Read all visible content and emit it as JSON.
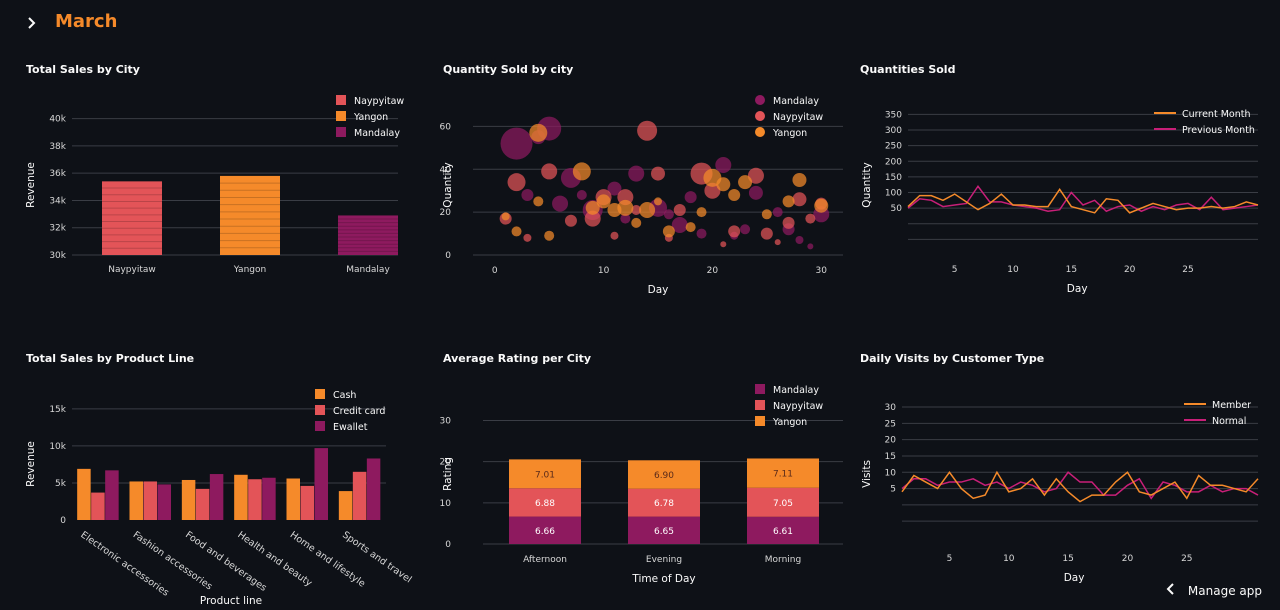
{
  "header": {
    "title": "March",
    "toggle_icon": "chevron-right-icon"
  },
  "footer": {
    "manage_label": "Manage app",
    "icon": "chevron-left-icon"
  },
  "colors": {
    "background": "#0e1117",
    "orange": "#f58a2a",
    "red": "#e35458",
    "purple": "#8e1a5f",
    "title_orange": "#f58a2a"
  },
  "charts": [
    {
      "title": "Total Sales by City",
      "chart_data": {
        "type": "bar",
        "categories": [
          "Naypyitaw",
          "Yangon",
          "Mandalay"
        ],
        "values": [
          35400,
          35800,
          32900
        ],
        "ylabel": "Revenue",
        "ylim": [
          30000,
          41000
        ],
        "yticks": [
          "30k",
          "32k",
          "34k",
          "36k",
          "38k",
          "40k"
        ],
        "legend": [
          "Naypyitaw",
          "Yangon",
          "Mandalay"
        ],
        "legend_position": "top-right"
      }
    },
    {
      "title": "Quantity Sold by city",
      "chart_data": {
        "type": "scatter",
        "xlabel": "Day",
        "ylabel": "Quantity",
        "xlim": [
          -2,
          32
        ],
        "ylim": [
          0,
          70
        ],
        "xticks": [
          "0",
          "10",
          "20",
          "30"
        ],
        "yticks": [
          "0",
          "20",
          "40",
          "60"
        ],
        "legend": [
          "Mandalay",
          "Naypyitaw",
          "Yangon"
        ],
        "legend_position": "top-right",
        "series": [
          {
            "name": "Mandalay",
            "color": "#8e1a5f",
            "points": [
              [
                2,
                52,
                16
              ],
              [
                5,
                59,
                12
              ],
              [
                6,
                24,
                8
              ],
              [
                7,
                36,
                10
              ],
              [
                9,
                21,
                10
              ],
              [
                11,
                31,
                7
              ],
              [
                13,
                38,
                8
              ],
              [
                15,
                22,
                9
              ],
              [
                17,
                14,
                8
              ],
              [
                18,
                27,
                6
              ],
              [
                21,
                42,
                8
              ],
              [
                24,
                29,
                7
              ],
              [
                27,
                12,
                6
              ],
              [
                28,
                7,
                4
              ],
              [
                30,
                19,
                8
              ],
              [
                3,
                28,
                6
              ],
              [
                8,
                28,
                5
              ],
              [
                12,
                17,
                5
              ],
              [
                19,
                10,
                5
              ],
              [
                23,
                12,
                5
              ],
              [
                26,
                20,
                5
              ],
              [
                29,
                4,
                3
              ],
              [
                16,
                19,
                5
              ],
              [
                22,
                9,
                4
              ],
              [
                4,
                55,
                7
              ]
            ]
          },
          {
            "name": "Naypyitaw",
            "color": "#e35458",
            "points": [
              [
                1,
                17,
                6
              ],
              [
                2,
                34,
                9
              ],
              [
                5,
                39,
                8
              ],
              [
                7,
                16,
                6
              ],
              [
                9,
                17,
                8
              ],
              [
                10,
                27,
                8
              ],
              [
                12,
                27,
                8
              ],
              [
                14,
                58,
                10
              ],
              [
                15,
                38,
                7
              ],
              [
                17,
                21,
                6
              ],
              [
                19,
                38,
                11
              ],
              [
                20,
                30,
                8
              ],
              [
                22,
                11,
                6
              ],
              [
                24,
                37,
                8
              ],
              [
                25,
                10,
                6
              ],
              [
                27,
                15,
                6
              ],
              [
                28,
                26,
                7
              ],
              [
                30,
                24,
                6
              ],
              [
                3,
                8,
                4
              ],
              [
                11,
                9,
                4
              ],
              [
                16,
                8,
                4
              ],
              [
                21,
                5,
                3
              ],
              [
                26,
                6,
                3
              ],
              [
                29,
                17,
                5
              ],
              [
                13,
                21,
                5
              ]
            ]
          },
          {
            "name": "Yangon",
            "color": "#f58a2a",
            "points": [
              [
                4,
                57,
                9
              ],
              [
                2,
                11,
                5
              ],
              [
                4,
                25,
                5
              ],
              [
                8,
                39,
                9
              ],
              [
                9,
                22,
                7
              ],
              [
                10,
                25,
                7
              ],
              [
                11,
                21,
                7
              ],
              [
                12,
                22,
                8
              ],
              [
                13,
                15,
                5
              ],
              [
                14,
                21,
                8
              ],
              [
                16,
                11,
                6
              ],
              [
                18,
                13,
                5
              ],
              [
                20,
                36,
                9
              ],
              [
                21,
                33,
                7
              ],
              [
                22,
                28,
                6
              ],
              [
                23,
                34,
                7
              ],
              [
                25,
                19,
                5
              ],
              [
                27,
                25,
                6
              ],
              [
                28,
                35,
                7
              ],
              [
                30,
                23,
                7
              ],
              [
                5,
                9,
                5
              ],
              [
                1,
                18,
                4
              ],
              [
                15,
                25,
                4
              ],
              [
                19,
                20,
                5
              ]
            ]
          }
        ]
      }
    },
    {
      "title": "Quantities Sold",
      "chart_data": {
        "type": "line",
        "xlabel": "Day",
        "ylabel": "Quantity",
        "xlim": [
          1,
          31
        ],
        "ylim": [
          -100,
          380
        ],
        "xticks": [
          "5",
          "10",
          "15",
          "20",
          "25"
        ],
        "yticks": [
          "50",
          "100",
          "150",
          "200",
          "250",
          "300",
          "350"
        ],
        "legend": [
          "Current Month",
          "Previous Month"
        ],
        "legend_position": "top-right",
        "x": [
          1,
          2,
          3,
          4,
          5,
          6,
          7,
          8,
          9,
          10,
          11,
          12,
          13,
          14,
          15,
          16,
          17,
          18,
          19,
          20,
          21,
          22,
          23,
          24,
          25,
          26,
          27,
          28,
          29,
          30,
          31
        ],
        "series": [
          {
            "name": "Current Month",
            "color": "#f58a2a",
            "values": [
              55,
              90,
              90,
              75,
              95,
              70,
              45,
              65,
              95,
              60,
              60,
              55,
              55,
              110,
              55,
              45,
              35,
              80,
              75,
              35,
              50,
              65,
              55,
              45,
              50,
              50,
              55,
              50,
              55,
              70,
              60
            ]
          },
          {
            "name": "Previous Month",
            "color": "#c81f78",
            "values": [
              50,
              80,
              75,
              55,
              60,
              65,
              120,
              70,
              70,
              60,
              55,
              50,
              40,
              45,
              100,
              60,
              75,
              40,
              55,
              60,
              40,
              55,
              45,
              60,
              65,
              45,
              85,
              45,
              50,
              55,
              60
            ]
          }
        ]
      }
    },
    {
      "title": "Total Sales by Product Line",
      "chart_data": {
        "type": "bar",
        "xlabel": "Product line",
        "ylabel": "Revenue",
        "ylim": [
          0,
          17000
        ],
        "yticks": [
          "0",
          "5k",
          "10k",
          "15k"
        ],
        "categories": [
          "Electronic accessories",
          "Fashion accessories",
          "Food and beverages",
          "Health and beauty",
          "Home and lifestyle",
          "Sports and travel"
        ],
        "legend": [
          "Cash",
          "Credit card",
          "Ewallet"
        ],
        "legend_position": "top-right",
        "series": [
          {
            "name": "Cash",
            "color": "#f58a2a",
            "values": [
              6900,
              5200,
              5400,
              6100,
              5600,
              3900
            ]
          },
          {
            "name": "Credit card",
            "color": "#e35458",
            "values": [
              3700,
              5200,
              4200,
              5500,
              4600,
              6500
            ]
          },
          {
            "name": "Ewallet",
            "color": "#8e1a5f",
            "values": [
              6700,
              4800,
              6200,
              5700,
              9700,
              8300
            ]
          }
        ]
      }
    },
    {
      "title": "Average Rating per City",
      "chart_data": {
        "type": "bar",
        "stacked": true,
        "xlabel": "Time of Day",
        "ylabel": "Rating",
        "ylim": [
          0,
          34
        ],
        "yticks": [
          "0",
          "10",
          "20",
          "30"
        ],
        "categories": [
          "Afternoon",
          "Evening",
          "Morning"
        ],
        "legend": [
          "Mandalay",
          "Naypyitaw",
          "Yangon"
        ],
        "legend_position": "top-right",
        "series": [
          {
            "name": "Mandalay",
            "color": "#8e1a5f",
            "values": [
              6.66,
              6.65,
              6.61
            ],
            "labels": [
              "6.66",
              "6.65",
              "6.61"
            ]
          },
          {
            "name": "Naypyitaw",
            "color": "#e35458",
            "values": [
              6.88,
              6.78,
              7.05
            ],
            "labels": [
              "6.88",
              "6.78",
              "7.05"
            ]
          },
          {
            "name": "Yangon",
            "color": "#f58a2a",
            "values": [
              7.01,
              6.9,
              7.11
            ],
            "labels": [
              "7.01",
              "6.90",
              "7.11"
            ]
          }
        ]
      }
    },
    {
      "title": "Daily Visits by Customer Type",
      "chart_data": {
        "type": "line",
        "xlabel": "Day",
        "ylabel": "Visits",
        "xlim": [
          1,
          31
        ],
        "ylim": [
          -12,
          34
        ],
        "xticks": [
          "5",
          "10",
          "15",
          "20",
          "25"
        ],
        "yticks": [
          "5",
          "10",
          "15",
          "20",
          "25",
          "30"
        ],
        "legend": [
          "Member",
          "Normal"
        ],
        "legend_position": "top-right",
        "x": [
          1,
          2,
          3,
          4,
          5,
          6,
          7,
          8,
          9,
          10,
          11,
          12,
          13,
          14,
          15,
          16,
          17,
          18,
          19,
          20,
          21,
          22,
          23,
          24,
          25,
          26,
          27,
          28,
          29,
          30,
          31
        ],
        "series": [
          {
            "name": "Member",
            "color": "#f58a2a",
            "values": [
              4,
              9,
              7,
              5,
              10,
              5,
              2,
              3,
              10,
              4,
              5,
              8,
              3,
              8,
              4,
              1,
              3,
              3,
              7,
              10,
              4,
              3,
              5,
              7,
              2,
              9,
              6,
              6,
              5,
              4,
              8
            ]
          },
          {
            "name": "Normal",
            "color": "#c81f78",
            "values": [
              5,
              8,
              8,
              6,
              7,
              7,
              8,
              6,
              7,
              5,
              7,
              6,
              4,
              5,
              10,
              7,
              7,
              3,
              3,
              6,
              8,
              2,
              7,
              6,
              4,
              4,
              6,
              4,
              5,
              5,
              3
            ]
          }
        ]
      }
    }
  ]
}
